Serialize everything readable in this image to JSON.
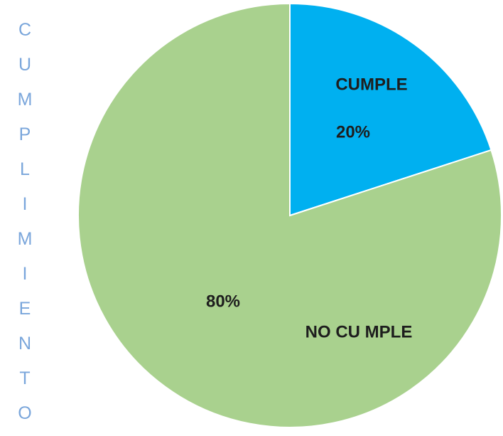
{
  "chart_data": {
    "type": "pie",
    "title": "CUMPLIMIENTO",
    "categories": [
      "CUMPLE",
      "NO CU MPLE"
    ],
    "values": [
      20,
      80
    ],
    "value_labels": [
      "20%",
      "80%"
    ],
    "colors": [
      "#00b0f0",
      "#a9d18e"
    ]
  }
}
